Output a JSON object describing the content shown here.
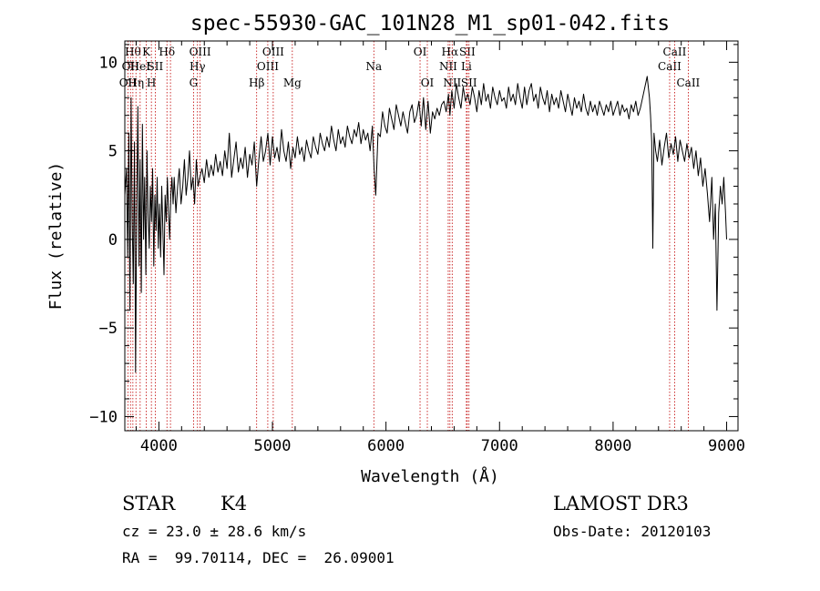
{
  "chart_data": {
    "type": "line",
    "title": "spec-55930-GAC_101N28_M1_sp01-042.fits",
    "xlabel": "Wavelength (Å)",
    "ylabel": "Flux (relative)",
    "xlim": [
      3700,
      9100
    ],
    "ylim": [
      -10.8,
      11.2
    ],
    "x_ticks": [
      4000,
      5000,
      6000,
      7000,
      8000,
      9000
    ],
    "y_ticks": [
      -10,
      -5,
      0,
      5,
      10
    ],
    "x_tick_labels": [
      "4000",
      "5000",
      "6000",
      "7000",
      "8000",
      "9000"
    ],
    "y_tick_labels": [
      "−10",
      "−5",
      "0",
      "5",
      "10"
    ],
    "series": [
      {
        "name": "spectrum",
        "color": "#000000",
        "x": [
          3700,
          3715,
          3725,
          3735,
          3745,
          3755,
          3765,
          3775,
          3785,
          3795,
          3805,
          3815,
          3825,
          3835,
          3845,
          3855,
          3865,
          3875,
          3885,
          3895,
          3905,
          3915,
          3925,
          3935,
          3945,
          3955,
          3965,
          3975,
          3985,
          3995,
          4005,
          4015,
          4025,
          4035,
          4045,
          4055,
          4065,
          4075,
          4085,
          4095,
          4105,
          4115,
          4125,
          4135,
          4150,
          4165,
          4180,
          4195,
          4210,
          4225,
          4240,
          4255,
          4270,
          4285,
          4300,
          4315,
          4330,
          4345,
          4360,
          4380,
          4400,
          4420,
          4440,
          4460,
          4480,
          4500,
          4520,
          4540,
          4560,
          4580,
          4600,
          4620,
          4640,
          4660,
          4680,
          4700,
          4720,
          4740,
          4760,
          4780,
          4800,
          4820,
          4840,
          4861,
          4880,
          4900,
          4920,
          4940,
          4960,
          4980,
          5000,
          5020,
          5040,
          5060,
          5080,
          5100,
          5120,
          5140,
          5160,
          5180,
          5200,
          5220,
          5240,
          5260,
          5280,
          5300,
          5320,
          5340,
          5360,
          5380,
          5400,
          5420,
          5440,
          5460,
          5480,
          5500,
          5520,
          5540,
          5560,
          5580,
          5600,
          5620,
          5640,
          5660,
          5680,
          5700,
          5720,
          5740,
          5760,
          5780,
          5800,
          5820,
          5840,
          5860,
          5880,
          5895,
          5910,
          5930,
          5950,
          5970,
          5990,
          6010,
          6030,
          6050,
          6070,
          6090,
          6110,
          6130,
          6150,
          6170,
          6190,
          6210,
          6230,
          6250,
          6270,
          6290,
          6310,
          6330,
          6350,
          6370,
          6390,
          6410,
          6430,
          6450,
          6470,
          6490,
          6510,
          6530,
          6550,
          6563,
          6580,
          6600,
          6620,
          6640,
          6660,
          6680,
          6700,
          6720,
          6740,
          6760,
          6780,
          6800,
          6820,
          6840,
          6860,
          6880,
          6900,
          6920,
          6940,
          6960,
          6980,
          7000,
          7020,
          7040,
          7060,
          7080,
          7100,
          7120,
          7140,
          7160,
          7180,
          7200,
          7220,
          7240,
          7260,
          7280,
          7300,
          7320,
          7340,
          7360,
          7380,
          7400,
          7420,
          7440,
          7460,
          7480,
          7500,
          7520,
          7540,
          7560,
          7580,
          7600,
          7620,
          7640,
          7660,
          7680,
          7700,
          7720,
          7740,
          7760,
          7780,
          7800,
          7820,
          7840,
          7860,
          7880,
          7900,
          7920,
          7940,
          7960,
          7980,
          8000,
          8020,
          8040,
          8060,
          8080,
          8100,
          8120,
          8140,
          8160,
          8180,
          8200,
          8220,
          8240,
          8260,
          8280,
          8300,
          8320,
          8330,
          8340,
          8350,
          8360,
          8375,
          8390,
          8410,
          8430,
          8450,
          8470,
          8490,
          8510,
          8530,
          8550,
          8570,
          8590,
          8610,
          8630,
          8650,
          8670,
          8690,
          8710,
          8730,
          8750,
          8770,
          8790,
          8810,
          8830,
          8850,
          8870,
          8885,
          8900,
          8915,
          8930,
          8945,
          8960,
          8975,
          8990,
          9000
        ],
        "values": [
          2.5,
          4.0,
          -1.0,
          6.0,
          -4.0,
          8.0,
          1.0,
          -2.5,
          5.5,
          -7.5,
          2.0,
          7.5,
          -1.5,
          4.5,
          -3.0,
          6.5,
          0.0,
          3.5,
          -2.0,
          5.0,
          1.5,
          -0.5,
          3.0,
          1.0,
          4.0,
          -1.5,
          2.5,
          0.5,
          3.5,
          -0.5,
          2.0,
          -1.0,
          3.0,
          0.5,
          -2.0,
          2.5,
          1.0,
          3.5,
          1.5,
          0.0,
          2.5,
          3.5,
          2.0,
          3.5,
          1.5,
          3.0,
          4.0,
          2.0,
          3.0,
          4.5,
          2.5,
          3.5,
          5.0,
          2.8,
          3.5,
          2.0,
          4.5,
          3.0,
          3.5,
          4.0,
          3.2,
          4.5,
          3.5,
          4.2,
          3.6,
          4.8,
          3.8,
          4.4,
          3.6,
          5.0,
          4.0,
          6.0,
          3.5,
          4.5,
          5.5,
          3.8,
          4.6,
          4.0,
          5.2,
          3.5,
          4.8,
          4.2,
          5.5,
          3.0,
          4.5,
          5.8,
          4.4,
          5.0,
          6.0,
          4.2,
          5.8,
          4.6,
          5.2,
          4.4,
          6.2,
          5.0,
          4.4,
          5.5,
          4.0,
          5.2,
          4.6,
          5.8,
          4.8,
          5.2,
          4.4,
          5.6,
          5.0,
          4.6,
          5.8,
          5.2,
          4.8,
          6.0,
          5.4,
          5.0,
          5.8,
          5.2,
          6.4,
          5.6,
          5.0,
          6.2,
          5.4,
          5.8,
          5.2,
          6.4,
          5.8,
          5.4,
          6.2,
          5.8,
          6.6,
          5.4,
          6.2,
          5.6,
          6.0,
          5.0,
          6.4,
          4.0,
          2.5,
          6.0,
          5.8,
          7.2,
          6.4,
          6.0,
          7.4,
          6.8,
          6.2,
          7.6,
          7.0,
          6.4,
          7.2,
          6.6,
          6.0,
          7.2,
          7.6,
          6.6,
          7.0,
          7.8,
          6.4,
          8.0,
          6.2,
          7.8,
          6.0,
          7.2,
          6.8,
          7.4,
          7.0,
          7.6,
          7.8,
          7.2,
          8.2,
          7.0,
          8.4,
          7.4,
          8.8,
          8.0,
          7.4,
          8.6,
          7.8,
          8.2,
          7.6,
          8.6,
          8.0,
          7.2,
          8.4,
          7.6,
          8.8,
          7.8,
          8.2,
          7.4,
          8.6,
          8.0,
          7.6,
          8.4,
          7.8,
          8.0,
          7.4,
          8.6,
          7.8,
          8.2,
          7.6,
          8.8,
          8.0,
          7.4,
          8.6,
          7.6,
          8.4,
          8.8,
          7.8,
          8.2,
          7.4,
          8.6,
          8.0,
          7.6,
          8.4,
          7.2,
          8.2,
          7.6,
          8.0,
          7.4,
          8.4,
          7.8,
          7.2,
          8.2,
          7.6,
          7.0,
          8.0,
          7.4,
          7.8,
          7.2,
          8.2,
          7.4,
          7.0,
          7.8,
          7.2,
          7.6,
          7.0,
          7.8,
          7.4,
          7.0,
          7.6,
          7.2,
          7.8,
          7.0,
          7.4,
          7.8,
          7.0,
          7.6,
          7.2,
          7.4,
          6.8,
          7.6,
          7.2,
          7.8,
          7.0,
          7.4,
          8.0,
          8.6,
          9.2,
          8.0,
          7.0,
          5.5,
          -0.5,
          6.0,
          5.0,
          4.4,
          5.6,
          4.2,
          5.2,
          6.0,
          4.6,
          5.4,
          4.8,
          5.8,
          4.4,
          5.6,
          5.0,
          4.4,
          5.4,
          4.6,
          5.2,
          4.0,
          5.0,
          3.6,
          4.6,
          3.0,
          4.0,
          2.6,
          1.0,
          3.5,
          0.0,
          2.0,
          -4.0,
          1.5,
          3.0,
          2.0,
          3.5,
          1.5,
          0.0
        ]
      }
    ],
    "line_markers": [
      {
        "x": 3727,
        "row": 3,
        "label": "OII"
      },
      {
        "x": 3750,
        "row": 2,
        "label": "OII"
      },
      {
        "x": 3771,
        "row": 1,
        "label": "Hθ"
      },
      {
        "x": 3798,
        "row": 3,
        "label": "Hη"
      },
      {
        "x": 3835,
        "row": 2,
        "label": "HeI"
      },
      {
        "x": 3889,
        "row": 1,
        "label": "K"
      },
      {
        "x": 3934,
        "row": 3,
        "label": "H"
      },
      {
        "x": 3968,
        "row": 2,
        "label": "SII"
      },
      {
        "x": 4071,
        "row": 1,
        "label": "Hδ"
      },
      {
        "x": 4102,
        "row": 0,
        "label": ""
      },
      {
        "x": 4305,
        "row": 3,
        "label": "G"
      },
      {
        "x": 4340,
        "row": 2,
        "label": "Hγ"
      },
      {
        "x": 4363,
        "row": 1,
        "label": "OIII"
      },
      {
        "x": 4861,
        "row": 3,
        "label": "Hβ"
      },
      {
        "x": 4959,
        "row": 2,
        "label": "OIII"
      },
      {
        "x": 5007,
        "row": 1,
        "label": "OIII"
      },
      {
        "x": 5175,
        "row": 3,
        "label": "Mg"
      },
      {
        "x": 5893,
        "row": 2,
        "label": "Na"
      },
      {
        "x": 6300,
        "row": 1,
        "label": "OI"
      },
      {
        "x": 6364,
        "row": 3,
        "label": "OI"
      },
      {
        "x": 6548,
        "row": 2,
        "label": "NII"
      },
      {
        "x": 6563,
        "row": 1,
        "label": "Hα"
      },
      {
        "x": 6583,
        "row": 3,
        "label": "NII"
      },
      {
        "x": 6708,
        "row": 2,
        "label": "Li"
      },
      {
        "x": 6716,
        "row": 1,
        "label": "SII"
      },
      {
        "x": 6731,
        "row": 3,
        "label": "SII"
      },
      {
        "x": 8498,
        "row": 2,
        "label": "CaII"
      },
      {
        "x": 8542,
        "row": 1,
        "label": "CaII"
      },
      {
        "x": 8662,
        "row": 3,
        "label": "CaII"
      }
    ]
  },
  "info": {
    "object_class": "STAR",
    "subclass": "K4",
    "redshift": "cz = 23.0 ± 28.6 km/s",
    "coords": "RA =  99.70114, DEC =  26.09001",
    "survey": "LAMOST DR3",
    "obs_date": "Obs-Date: 20120103"
  },
  "colors": {
    "axes": "#000000",
    "line": "#000000",
    "marker": "#c00000",
    "background": "#ffffff"
  }
}
